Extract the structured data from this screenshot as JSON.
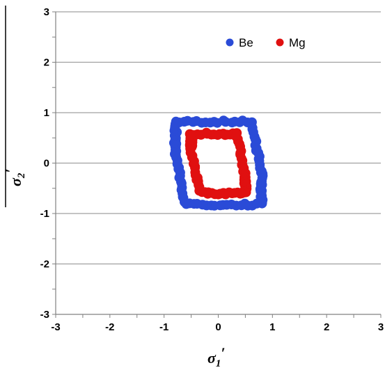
{
  "chart_data": {
    "type": "scatter",
    "xlabel_main": "σ",
    "xlabel_sub": "1",
    "xlabel_prime": "′",
    "ylabel_main": "σ",
    "ylabel_sub": "2",
    "ylabel_prime": "′",
    "xlim": [
      -3,
      3
    ],
    "ylim": [
      -3,
      3
    ],
    "xticks": [
      -3,
      -2,
      -1,
      0,
      1,
      2,
      3
    ],
    "yticks": [
      -3,
      -2,
      -1,
      0,
      1,
      2,
      3
    ],
    "grid": "horizontal",
    "legend_position": "top-right",
    "series": [
      {
        "name": "Be",
        "color": "#2a4bd7",
        "vertices": [
          [
            -0.78,
            0.82
          ],
          [
            0.62,
            0.82
          ],
          [
            0.8,
            -0.2
          ],
          [
            0.8,
            -0.82
          ],
          [
            -0.6,
            -0.82
          ],
          [
            -0.8,
            0.2
          ]
        ],
        "points_per_edge": 18
      },
      {
        "name": "Mg",
        "color": "#e01010",
        "vertices": [
          [
            -0.5,
            0.58
          ],
          [
            0.34,
            0.58
          ],
          [
            0.5,
            -0.28
          ],
          [
            0.5,
            -0.6
          ],
          [
            -0.32,
            -0.6
          ],
          [
            -0.5,
            0.28
          ]
        ],
        "points_per_edge": 16
      }
    ]
  }
}
